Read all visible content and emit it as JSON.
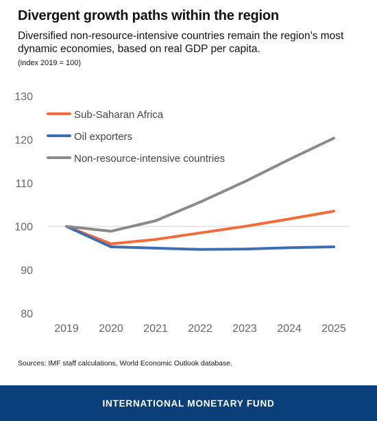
{
  "header": {
    "title": "Divergent growth paths within the region",
    "subtitle": "Diversified non-resource-intensive countries remain the region’s most dynamic economies, based on real GDP per capita.",
    "note": "(index 2019 = 100)"
  },
  "footer": {
    "source": "Sources: IMF staff calculations, World Economic Outlook database.",
    "brand": "INTERNATIONAL MONETARY FUND",
    "brand_color": "#0a3f7a"
  },
  "chart_data": {
    "type": "line",
    "x": [
      "2019",
      "2020",
      "2021",
      "2022",
      "2023",
      "2024",
      "2025"
    ],
    "ylim": [
      80,
      130
    ],
    "yticks": [
      80,
      90,
      100,
      110,
      120,
      130
    ],
    "reference_line": 100,
    "grid": false,
    "legend_position": "top-left",
    "series": [
      {
        "name": "Sub-Saharan Africa",
        "color": "#f26b3a",
        "values": [
          100,
          96,
          97,
          98.5,
          100,
          101.7,
          103.5
        ]
      },
      {
        "name": "Oil exporters",
        "color": "#3f6db5",
        "values": [
          100,
          95.3,
          95,
          94.7,
          94.8,
          95.1,
          95.3
        ]
      },
      {
        "name": "Non-resource-intensive countries",
        "color": "#8a8a8a",
        "values": [
          100,
          98.9,
          101.3,
          105.6,
          110.3,
          115.4,
          120.3
        ]
      }
    ]
  }
}
